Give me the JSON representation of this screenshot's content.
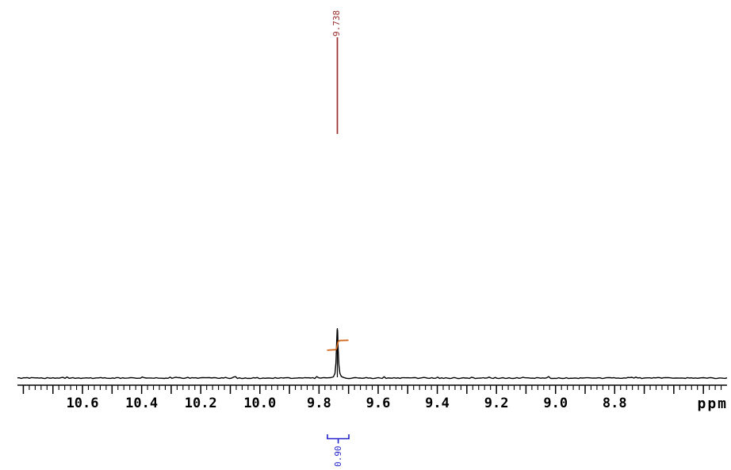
{
  "chart_data": {
    "type": "line",
    "description": "1H NMR spectrum, flat noisy baseline with one sharp singlet peak",
    "x_axis": {
      "unit_label": "ppm",
      "range": [
        10.82,
        8.42
      ],
      "direction_right": "decreasing",
      "tick_labels": [
        "10.6",
        "10.4",
        "10.2",
        "10.0",
        "9.8",
        "9.6",
        "9.4",
        "9.2",
        "9.0",
        "8.8"
      ],
      "label_step": 0.2,
      "major_tick_step": 0.1,
      "minor_tick_step": 0.02
    },
    "peaks": [
      {
        "ppm": 9.738,
        "label": "9.738"
      }
    ],
    "integrals": [
      {
        "value": 0.9,
        "label": "0.90",
        "center_ppm": 9.738,
        "region_ppm": [
          9.77,
          9.7
        ]
      }
    ]
  },
  "colors": {
    "background": "#ffffff",
    "trace": "#000000",
    "axis": "#000000",
    "peak_label": "#9b2c2c",
    "integral_curve": "#d2691e",
    "integral_label": "#2222cc"
  }
}
